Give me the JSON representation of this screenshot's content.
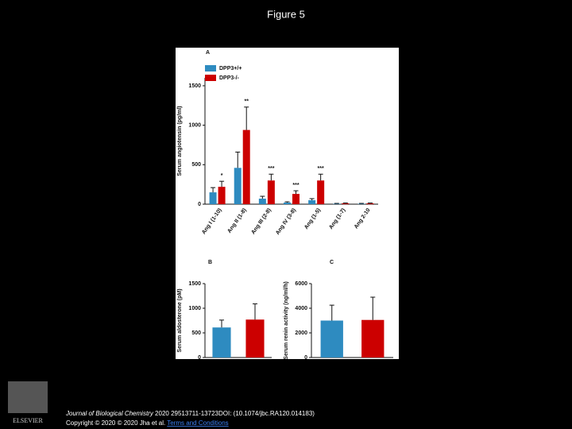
{
  "title": "Figure 5",
  "chart_data": [
    {
      "type": "bar",
      "panel": "A",
      "y_label": "Serum angiotensin (pg/ml)",
      "categories": [
        "Ang I (1-10)",
        "Ang II (1-8)",
        "Ang III (2-8)",
        "Ang IV (3-8)",
        "Ang (1-5)",
        "Ang (1-7)",
        "Ang 2-10"
      ],
      "series": [
        {
          "name": "DPP3+/+",
          "color": "#2e8bc0",
          "values": [
            150,
            460,
            70,
            20,
            50,
            5,
            5
          ],
          "errors": [
            60,
            200,
            30,
            10,
            20,
            5,
            5
          ]
        },
        {
          "name": "DPP3-/-",
          "color": "#cc0000",
          "values": [
            220,
            940,
            300,
            130,
            300,
            10,
            10
          ],
          "errors": [
            70,
            290,
            80,
            40,
            80,
            5,
            5
          ]
        }
      ],
      "significance": [
        "*",
        "**",
        "***",
        "***",
        "***",
        null,
        null
      ],
      "ylim": [
        0,
        1600
      ],
      "yticks": [
        0,
        500,
        1000,
        1500
      ],
      "legend": "upper left"
    },
    {
      "type": "bar",
      "panel": "B",
      "y_label": "Serum aldosterone (pM)",
      "values": [
        610,
        770
      ],
      "errors": [
        150,
        320
      ],
      "colors": [
        "#2e8bc0",
        "#cc0000"
      ],
      "ylim": [
        0,
        1500
      ],
      "yticks": [
        0,
        500,
        1000,
        1500
      ]
    },
    {
      "type": "bar",
      "panel": "C",
      "y_label": "Serum renin activity (ng/ml/h)",
      "values": [
        3000,
        3050
      ],
      "errors": [
        1250,
        1850
      ],
      "colors": [
        "#2e8bc0",
        "#cc0000"
      ],
      "ylim": [
        0,
        6000
      ],
      "yticks": [
        0,
        2000,
        4000,
        6000
      ]
    }
  ],
  "footer": {
    "journal": "Journal of Biological Chemistry",
    "citation": " 2020 29513711-13723DOI: (10.1074/jbc.RA120.014183)",
    "copyright": "Copyright © 2020 © 2020 Jha et al. ",
    "link": "Terms and Conditions"
  },
  "logo": "ELSEVIER"
}
